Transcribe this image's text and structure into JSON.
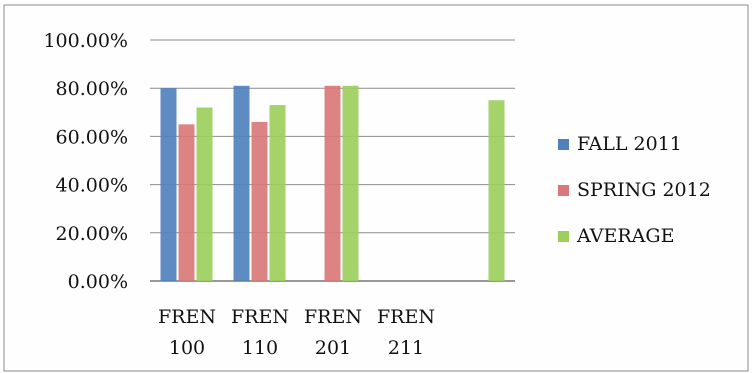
{
  "chart_data": {
    "type": "bar",
    "categories": [
      "FREN 100",
      "FREN 110",
      "FREN 201",
      "FREN 211",
      ""
    ],
    "category_label_lines": [
      [
        "FREN",
        "100"
      ],
      [
        "FREN",
        "110"
      ],
      [
        "FREN",
        "201"
      ],
      [
        "FREN",
        "211"
      ],
      [
        "",
        ""
      ]
    ],
    "series": [
      {
        "name": "FALL 2011",
        "values": [
          80,
          81,
          null,
          null,
          null
        ],
        "color": "#4f81bd"
      },
      {
        "name": "SPRING 2012",
        "values": [
          65,
          66,
          81,
          null,
          null
        ],
        "color": "#d9787a"
      },
      {
        "name": "AVERAGE",
        "values": [
          72,
          73,
          81,
          null,
          75
        ],
        "color": "#9ccf5c"
      }
    ],
    "y_ticks": [
      "0.00%",
      "20.00%",
      "40.00%",
      "60.00%",
      "80.00%",
      "100.00%"
    ],
    "ylim": [
      0,
      100
    ],
    "y_unit": "percent",
    "grid": true,
    "legend_position": "right",
    "title": "",
    "xlabel": "",
    "ylabel": ""
  }
}
